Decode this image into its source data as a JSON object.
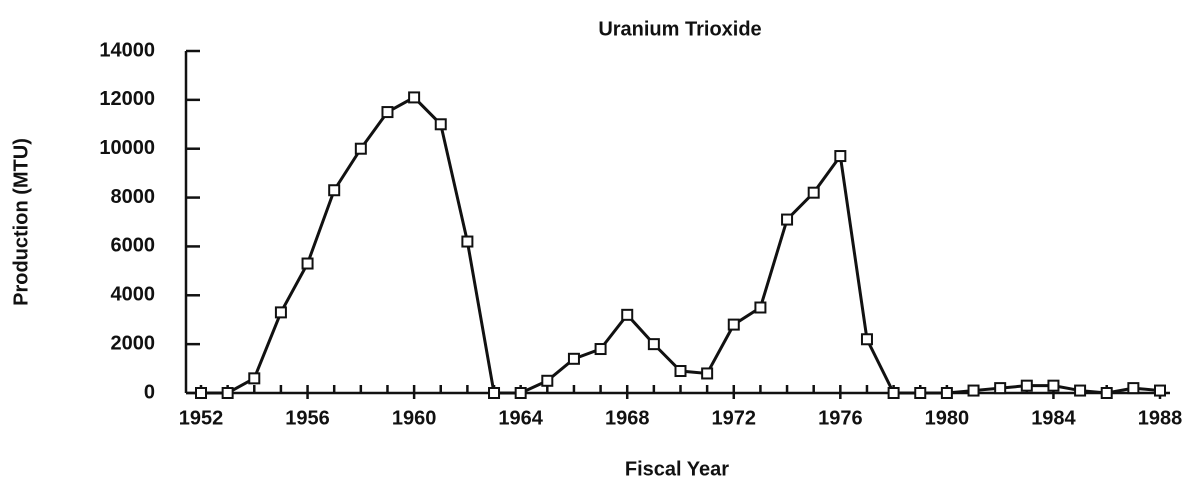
{
  "chart_data": {
    "type": "line",
    "title": "Uranium Trioxide",
    "x_label": "Fiscal Year",
    "y_label": "Production (MTU)",
    "x": [
      1952,
      1953,
      1954,
      1955,
      1956,
      1957,
      1958,
      1959,
      1960,
      1961,
      1962,
      1963,
      1964,
      1965,
      1966,
      1967,
      1968,
      1969,
      1970,
      1971,
      1972,
      1973,
      1974,
      1975,
      1976,
      1977,
      1978,
      1979,
      1980,
      1981,
      1982,
      1983,
      1984,
      1985,
      1986,
      1987,
      1988
    ],
    "series": [
      {
        "name": "Uranium Trioxide",
        "color": "#111111",
        "values": [
          0,
          0,
          600,
          3300,
          5300,
          8300,
          10000,
          11500,
          12100,
          11000,
          6200,
          0,
          0,
          500,
          1400,
          1800,
          3200,
          2000,
          900,
          800,
          2800,
          3500,
          7100,
          8200,
          9700,
          2200,
          0,
          0,
          0,
          100,
          200,
          300,
          300,
          100,
          0,
          200,
          100
        ]
      }
    ],
    "xlim": [
      1952,
      1988
    ],
    "xticks": [
      1952,
      1956,
      1960,
      1964,
      1968,
      1972,
      1976,
      1980,
      1984,
      1988
    ],
    "ylim": [
      0,
      14000
    ],
    "yticks": [
      0,
      2000,
      4000,
      6000,
      8000,
      10000,
      12000,
      14000
    ]
  }
}
